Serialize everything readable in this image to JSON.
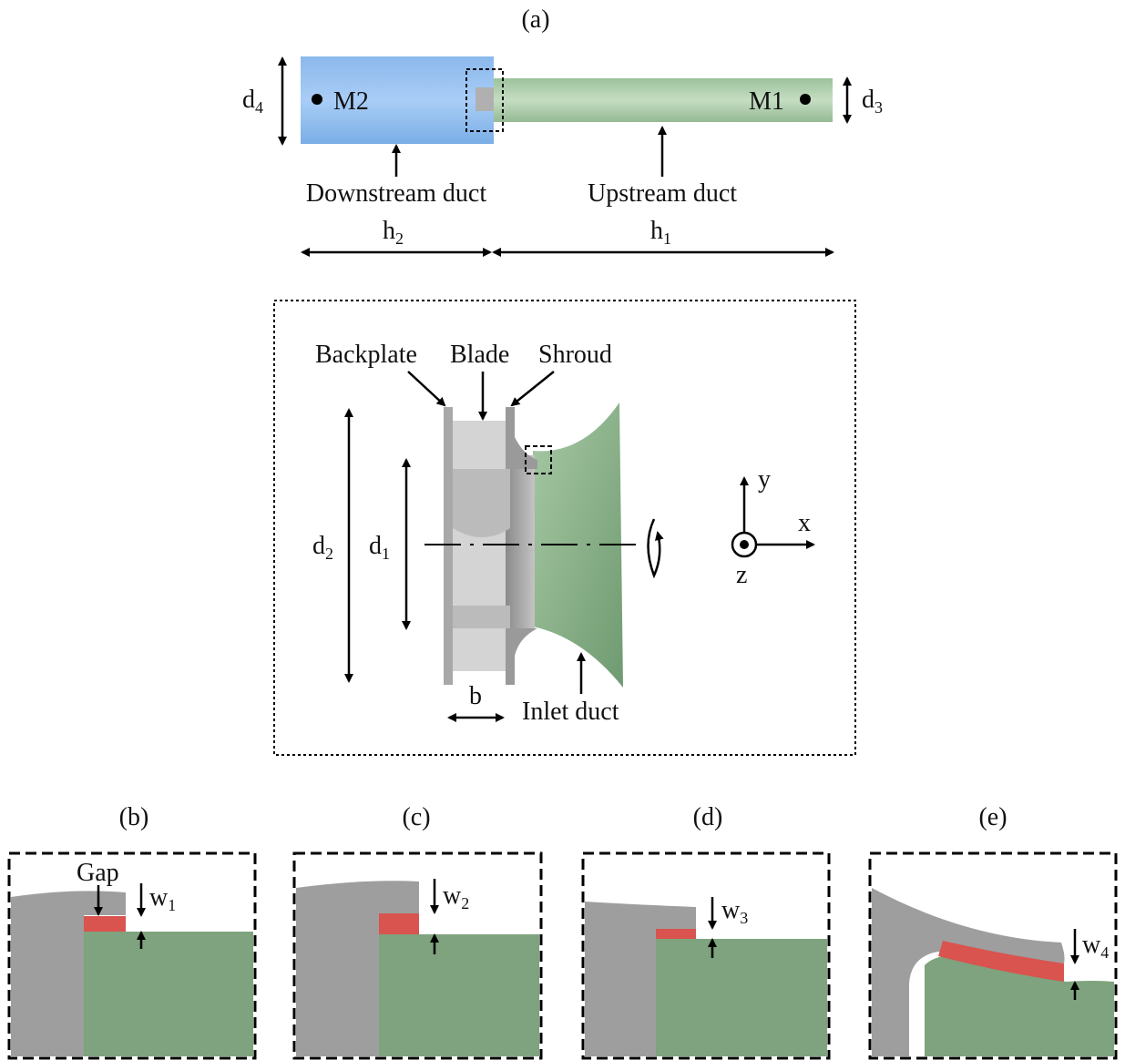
{
  "panel_a": {
    "label": "(a)",
    "m2": "M2",
    "m1": "M1",
    "downstream": "Downstream duct",
    "upstream": "Upstream duct",
    "d4": {
      "base": "d",
      "sub": "4"
    },
    "d3": {
      "base": "d",
      "sub": "3"
    },
    "h2": {
      "base": "h",
      "sub": "2"
    },
    "h1": {
      "base": "h",
      "sub": "1"
    }
  },
  "impeller": {
    "backplate": "Backplate",
    "blade": "Blade",
    "shroud": "Shroud",
    "inlet": "Inlet duct",
    "d2": {
      "base": "d",
      "sub": "2"
    },
    "d1": {
      "base": "d",
      "sub": "1"
    },
    "b": "b",
    "axes": {
      "x": "x",
      "y": "y",
      "z": "z"
    }
  },
  "details": [
    {
      "label": "(b)",
      "gap": "Gap",
      "w": {
        "base": "w",
        "sub": "1"
      }
    },
    {
      "label": "(c)",
      "w": {
        "base": "w",
        "sub": "2"
      }
    },
    {
      "label": "(d)",
      "w": {
        "base": "w",
        "sub": "3"
      }
    },
    {
      "label": "(e)",
      "w": {
        "base": "w",
        "sub": "4"
      }
    }
  ]
}
